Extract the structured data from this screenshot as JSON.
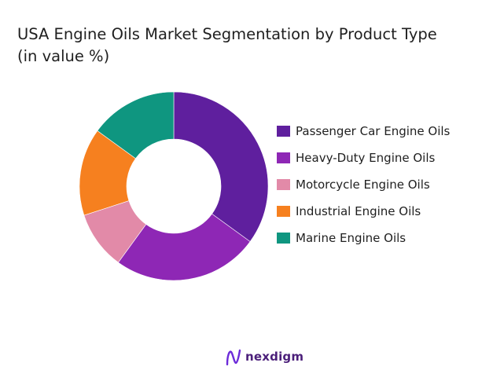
{
  "title": {
    "line1": "USA Engine Oils Market Segmentation by Product Type",
    "line2": "(in value %)"
  },
  "chart_data": {
    "type": "pie",
    "style": "donut",
    "title": "USA Engine Oils Market Segmentation by Product Type (in value %)",
    "legend_position": "right",
    "categories": [
      "Passenger Car Engine Oils",
      "Heavy-Duty Engine Oils",
      "Motorcycle Engine Oils",
      "Industrial Engine Oils",
      "Marine Engine Oils"
    ],
    "values": [
      35,
      25,
      10,
      15,
      15
    ],
    "colors": [
      "#5f1f9e",
      "#8e27b5",
      "#e28aa8",
      "#f6801f",
      "#0f9680"
    ]
  },
  "brand": {
    "name": "nexdigm",
    "icon": "nexdigm-logo-icon"
  }
}
